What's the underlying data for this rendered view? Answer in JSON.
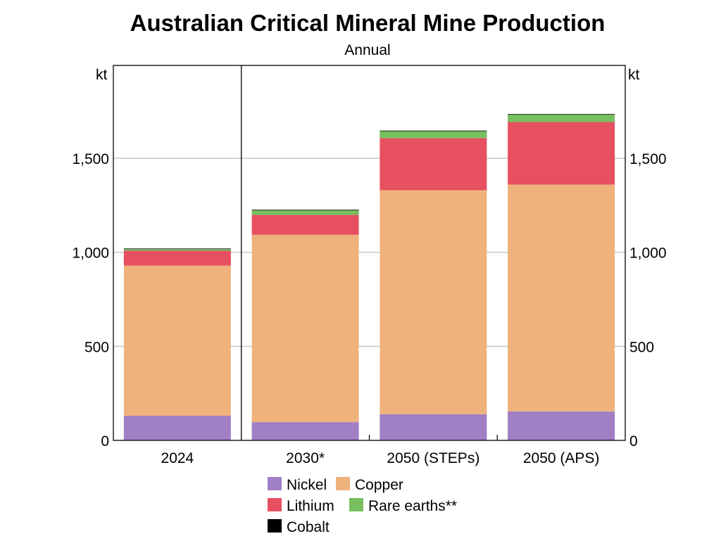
{
  "chart_data": {
    "type": "bar",
    "stacked": true,
    "title": "Australian Critical Mineral Mine Production",
    "subtitle": "Annual",
    "ylabel_left": "kt",
    "ylabel_right": "kt",
    "ylim": [
      0,
      2000
    ],
    "yticks": [
      0,
      500,
      1000,
      1500
    ],
    "ytick_labels": [
      "0",
      "500",
      "1,000",
      "1,500"
    ],
    "grid": true,
    "legend_position": "bottom",
    "categories": [
      "2024",
      "2030*",
      "2050 (STEPs)",
      "2050 (APS)"
    ],
    "series": [
      {
        "name": "Nickel",
        "color": "#a07fc5",
        "values": [
          131,
          97,
          139,
          154
        ]
      },
      {
        "name": "Copper",
        "color": "#f0b27c",
        "values": [
          798,
          996,
          1191,
          1206
        ]
      },
      {
        "name": "Lithium",
        "color": "#e75061",
        "values": [
          79,
          106,
          277,
          333
        ]
      },
      {
        "name": "Rare earths**",
        "color": "#77bf5f",
        "values": [
          9,
          25,
          37,
          39
        ]
      },
      {
        "name": "Cobalt",
        "color": "#000000",
        "values": [
          3,
          3,
          3,
          3
        ]
      }
    ]
  }
}
